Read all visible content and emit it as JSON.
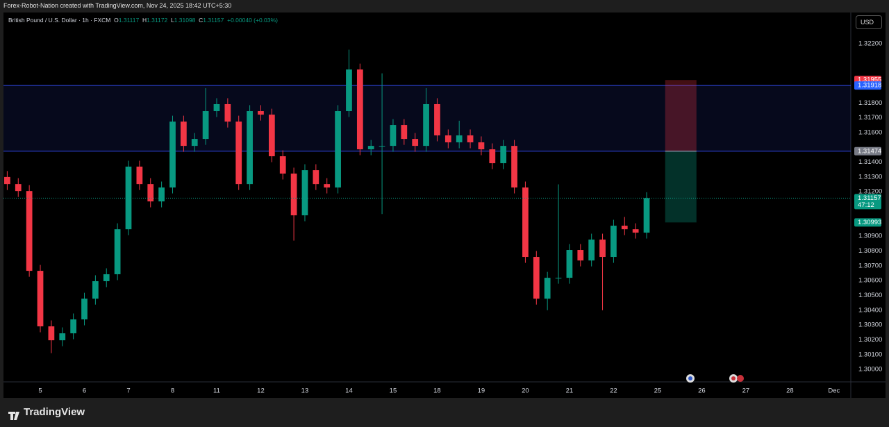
{
  "header": {
    "title": "Forex-Robot-Nation created with TradingView.com, Nov 24, 2025 18:42 UTC+5:30"
  },
  "currency": "USD",
  "countdown": "47:12",
  "footer": {
    "brand": "TradingView"
  },
  "chart_data": {
    "type": "candlestick",
    "legend": {
      "symbol": "British Pound / U.S. Dollar · 1h · FXCM",
      "o_label": "O",
      "open": 1.31117,
      "h_label": "H",
      "high": 1.31172,
      "l_label": "L",
      "low": 1.31098,
      "c_label": "C",
      "change": "+0.00040 (+0.03%)"
    },
    "up_color": "#089981",
    "down_color": "#f23645",
    "x": [
      -0.75,
      -0.5,
      -0.25,
      0,
      0.25,
      0.5,
      0.75,
      1,
      1.25,
      1.5,
      1.75,
      2,
      2.25,
      2.5,
      2.75,
      3,
      3.25,
      3.5,
      3.75,
      4,
      4.25,
      4.5,
      4.75,
      5,
      5.25,
      5.5,
      5.75,
      6,
      6.25,
      6.5,
      6.75,
      7,
      7.25,
      7.5,
      7.75,
      8,
      8.25,
      8.5,
      8.75,
      9,
      9.25,
      9.5,
      9.75,
      10,
      10.25,
      10.5,
      10.75,
      11,
      11.25,
      11.5,
      11.75,
      12,
      12.25,
      12.5,
      12.75,
      13,
      13.25,
      13.5,
      13.75
    ],
    "open": [
      1.313,
      1.31252,
      1.31205,
      1.30666,
      1.30291,
      1.30197,
      1.30244,
      1.30338,
      1.30478,
      1.30596,
      1.30643,
      1.30947,
      1.3137,
      1.31252,
      1.31135,
      1.31229,
      1.31674,
      1.3151,
      1.31557,
      1.31745,
      1.31792,
      1.31674,
      1.31252,
      1.31745,
      1.31721,
      1.3144,
      1.31323,
      1.31041,
      1.31346,
      1.31252,
      1.31229,
      1.31745,
      1.32026,
      1.31487,
      1.3151,
      1.3151,
      1.31651,
      1.31557,
      1.3151,
      1.31792,
      1.31581,
      1.31534,
      1.31581,
      1.31534,
      1.31487,
      1.31393,
      1.3151,
      1.31229,
      1.3076,
      1.30478,
      1.30619,
      1.30619,
      1.30807,
      1.30736,
      1.30877,
      1.3076,
      1.30971,
      1.30947,
      1.30924
    ],
    "high": [
      1.3134,
      1.31292,
      1.31245,
      1.30706,
      1.30331,
      1.30284,
      1.30378,
      1.30518,
      1.30636,
      1.30683,
      1.30987,
      1.3141,
      1.3141,
      1.31292,
      1.31269,
      1.31714,
      1.31714,
      1.31597,
      1.319,
      1.31832,
      1.31832,
      1.31714,
      1.31785,
      1.31785,
      1.31761,
      1.3148,
      1.31363,
      1.31386,
      1.31386,
      1.31292,
      1.31785,
      1.3216,
      1.32066,
      1.3155,
      1.32,
      1.31691,
      1.31691,
      1.31597,
      1.319,
      1.31832,
      1.31621,
      1.3168,
      1.31621,
      1.31574,
      1.31527,
      1.3155,
      1.3155,
      1.31269,
      1.308,
      1.30659,
      1.3125,
      1.30847,
      1.30847,
      1.30917,
      1.30917,
      1.31011,
      1.3103,
      1.30987,
      1.31197
    ],
    "low": [
      1.31212,
      1.31165,
      1.30626,
      1.30251,
      1.3011,
      1.30157,
      1.30204,
      1.30298,
      1.30438,
      1.30556,
      1.30603,
      1.30907,
      1.31212,
      1.31095,
      1.31095,
      1.31189,
      1.3147,
      1.3147,
      1.31517,
      1.31705,
      1.31634,
      1.31212,
      1.31212,
      1.31681,
      1.314,
      1.31283,
      1.3087,
      1.31001,
      1.31212,
      1.31189,
      1.31189,
      1.31705,
      1.31447,
      1.31447,
      1.3105,
      1.3147,
      1.31517,
      1.3147,
      1.3147,
      1.31541,
      1.31494,
      1.31494,
      1.31494,
      1.31447,
      1.31353,
      1.31353,
      1.31189,
      1.3072,
      1.30438,
      1.304,
      1.30579,
      1.30579,
      1.30696,
      1.30696,
      1.304,
      1.3072,
      1.30907,
      1.30884,
      1.30884
    ],
    "close": [
      1.31252,
      1.31205,
      1.30666,
      1.30291,
      1.30197,
      1.30244,
      1.30338,
      1.30478,
      1.30596,
      1.30643,
      1.30947,
      1.3137,
      1.31252,
      1.31135,
      1.31229,
      1.31674,
      1.3151,
      1.31557,
      1.31745,
      1.31792,
      1.31674,
      1.31252,
      1.31745,
      1.31721,
      1.3144,
      1.31323,
      1.31041,
      1.31346,
      1.31252,
      1.31229,
      1.31745,
      1.32026,
      1.31487,
      1.3151,
      1.3151,
      1.31651,
      1.31557,
      1.3151,
      1.31792,
      1.31581,
      1.31534,
      1.31581,
      1.31534,
      1.31487,
      1.31393,
      1.3151,
      1.31229,
      1.3076,
      1.30478,
      1.30619,
      1.30619,
      1.30807,
      1.30736,
      1.30877,
      1.3076,
      1.30971,
      1.30947,
      1.30924,
      1.31157
    ],
    "zone": {
      "top": 1.31918,
      "bottom": 1.31474,
      "color": "#3049e8"
    },
    "position": {
      "x": [
        14.17,
        14.88
      ],
      "stop": 1.31955,
      "entry": 1.31474,
      "target": 1.30993
    },
    "xlim": [
      -0.835,
      18.38
    ],
    "ylim": [
      1.29916,
      1.32411
    ],
    "xticks": [
      {
        "value": 0,
        "label": "5"
      },
      {
        "value": 1,
        "label": "6"
      },
      {
        "value": 2,
        "label": "7"
      },
      {
        "value": 3,
        "label": "8"
      },
      {
        "value": 4,
        "label": "11"
      },
      {
        "value": 5,
        "label": "12"
      },
      {
        "value": 6,
        "label": "13"
      },
      {
        "value": 7,
        "label": "14"
      },
      {
        "value": 8,
        "label": "15"
      },
      {
        "value": 9,
        "label": "18"
      },
      {
        "value": 10,
        "label": "19"
      },
      {
        "value": 11,
        "label": "20"
      },
      {
        "value": 12,
        "label": "21"
      },
      {
        "value": 13,
        "label": "22"
      },
      {
        "value": 14,
        "label": "25"
      },
      {
        "value": 15,
        "label": "26"
      },
      {
        "value": 16,
        "label": "27"
      },
      {
        "value": 17,
        "label": "28"
      },
      {
        "value": 18,
        "label": "Dec"
      }
    ],
    "yticks": [
      {
        "value": 1.3,
        "label": "1.30000"
      },
      {
        "value": 1.301,
        "label": "1.30100"
      },
      {
        "value": 1.302,
        "label": "1.30200"
      },
      {
        "value": 1.303,
        "label": "1.30300"
      },
      {
        "value": 1.304,
        "label": "1.30400"
      },
      {
        "value": 1.305,
        "label": "1.30500"
      },
      {
        "value": 1.306,
        "label": "1.30600"
      },
      {
        "value": 1.307,
        "label": "1.30700"
      },
      {
        "value": 1.308,
        "label": "1.30800"
      },
      {
        "value": 1.309,
        "label": "1.30900"
      },
      {
        "value": 1.312,
        "label": "1.31200"
      },
      {
        "value": 1.313,
        "label": "1.31300"
      },
      {
        "value": 1.314,
        "label": "1.31400"
      },
      {
        "value": 1.316,
        "label": "1.31600"
      },
      {
        "value": 1.317,
        "label": "1.31700"
      },
      {
        "value": 1.318,
        "label": "1.31800"
      },
      {
        "value": 1.322,
        "label": "1.32200"
      }
    ],
    "grid": false
  }
}
